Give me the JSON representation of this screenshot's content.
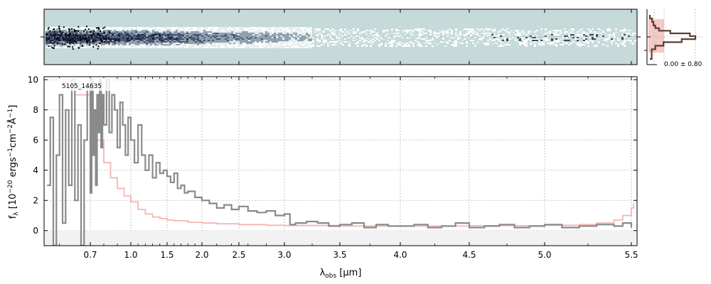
{
  "chart_data": [
    {
      "type": "heatmap",
      "panel": "2d-spectrum",
      "background_color": "#c5dad9",
      "trace_color": "#2b3550",
      "description_values": {
        "trace_center_row_fraction": 0.5
      }
    },
    {
      "type": "line",
      "panel": "cross-dispersion-profile",
      "annotation": "0.00 ± 0.80",
      "profile_color": "#5a3e32",
      "fill_color": "#f6c9c4",
      "profile": [
        [
          0.0,
          0.0
        ],
        [
          0.0,
          0.08
        ],
        [
          0.05,
          0.08
        ],
        [
          0.05,
          0.16
        ],
        [
          0.08,
          0.16
        ],
        [
          0.08,
          0.24
        ],
        [
          0.12,
          0.24
        ],
        [
          0.12,
          0.3
        ],
        [
          0.2,
          0.3
        ],
        [
          0.2,
          0.36
        ],
        [
          0.45,
          0.36
        ],
        [
          0.45,
          0.42
        ],
        [
          0.88,
          0.42
        ],
        [
          0.88,
          0.48
        ],
        [
          1.0,
          0.48
        ],
        [
          1.0,
          0.55
        ],
        [
          0.7,
          0.55
        ],
        [
          0.7,
          0.62
        ],
        [
          0.3,
          0.62
        ],
        [
          0.3,
          0.7
        ],
        [
          0.12,
          0.7
        ],
        [
          0.12,
          0.78
        ],
        [
          0.04,
          0.78
        ],
        [
          0.04,
          1.0
        ],
        [
          0.0,
          1.0
        ]
      ]
    },
    {
      "type": "line",
      "panel": "1d-spectrum",
      "xlabel": "λ_obs [μm]",
      "ylabel": "f_λ [10^-20 ergs^-1 cm^-2 Å^-1]",
      "xtick_labels": [
        "0.7",
        "1.0",
        "1.5",
        "2.0",
        "2.5",
        "3.0",
        "3.5",
        "4.0",
        "4.5",
        "5.0",
        "5.5"
      ],
      "xticks": [
        0.7,
        1.0,
        1.5,
        2.0,
        2.5,
        3.0,
        3.5,
        4.0,
        4.5,
        5.0,
        5.5
      ],
      "yticks": [
        0,
        2,
        4,
        6,
        8,
        10
      ],
      "ylim": [
        -1.0,
        10.2
      ],
      "grid": true,
      "legend_label": "5105_14635",
      "series": [
        {
          "role": "flux",
          "color": "#8a8a8a",
          "points": [
            [
              0.56,
              3.0
            ],
            [
              0.57,
              7.5
            ],
            [
              0.58,
              -1.0
            ],
            [
              0.59,
              5.0
            ],
            [
              0.6,
              9.0
            ],
            [
              0.61,
              0.5
            ],
            [
              0.62,
              8.0
            ],
            [
              0.63,
              3.0
            ],
            [
              0.64,
              10.0
            ],
            [
              0.65,
              2.0
            ],
            [
              0.66,
              7.0
            ],
            [
              0.67,
              -1.0
            ],
            [
              0.68,
              6.0
            ],
            [
              0.69,
              9.5
            ],
            [
              0.7,
              2.5
            ],
            [
              0.71,
              10.0
            ],
            [
              0.72,
              5.0
            ],
            [
              0.73,
              8.0
            ],
            [
              0.74,
              3.0
            ],
            [
              0.75,
              9.0
            ],
            [
              0.76,
              6.5
            ],
            [
              0.77,
              10.0
            ],
            [
              0.78,
              5.5
            ],
            [
              0.79,
              9.0
            ],
            [
              0.8,
              7.0
            ],
            [
              0.82,
              10.0
            ],
            [
              0.84,
              6.5
            ],
            [
              0.86,
              9.0
            ],
            [
              0.88,
              8.0
            ],
            [
              0.9,
              5.5
            ],
            [
              0.92,
              8.5
            ],
            [
              0.94,
              7.0
            ],
            [
              0.96,
              5.0
            ],
            [
              0.98,
              7.5
            ],
            [
              1.0,
              6.0
            ],
            [
              1.05,
              4.5
            ],
            [
              1.1,
              7.0
            ],
            [
              1.15,
              5.0
            ],
            [
              1.2,
              4.0
            ],
            [
              1.25,
              5.0
            ],
            [
              1.3,
              3.5
            ],
            [
              1.35,
              4.5
            ],
            [
              1.4,
              3.8
            ],
            [
              1.45,
              4.0
            ],
            [
              1.5,
              3.6
            ],
            [
              1.55,
              3.2
            ],
            [
              1.6,
              3.8
            ],
            [
              1.65,
              2.8
            ],
            [
              1.7,
              3.0
            ],
            [
              1.75,
              2.5
            ],
            [
              1.8,
              2.6
            ],
            [
              1.9,
              2.2
            ],
            [
              2.0,
              2.0
            ],
            [
              2.1,
              1.8
            ],
            [
              2.2,
              1.5
            ],
            [
              2.3,
              1.7
            ],
            [
              2.4,
              1.4
            ],
            [
              2.5,
              1.6
            ],
            [
              2.6,
              1.3
            ],
            [
              2.7,
              1.2
            ],
            [
              2.8,
              1.3
            ],
            [
              2.9,
              1.0
            ],
            [
              3.0,
              1.1
            ],
            [
              3.05,
              0.4
            ],
            [
              3.1,
              0.5
            ],
            [
              3.2,
              0.6
            ],
            [
              3.3,
              0.5
            ],
            [
              3.4,
              0.3
            ],
            [
              3.5,
              0.4
            ],
            [
              3.6,
              0.5
            ],
            [
              3.7,
              0.2
            ],
            [
              3.8,
              0.4
            ],
            [
              3.9,
              0.3
            ],
            [
              4.0,
              0.3
            ],
            [
              4.1,
              0.4
            ],
            [
              4.2,
              0.2
            ],
            [
              4.3,
              0.3
            ],
            [
              4.4,
              0.5
            ],
            [
              4.5,
              0.2
            ],
            [
              4.6,
              0.3
            ],
            [
              4.7,
              0.4
            ],
            [
              4.8,
              0.2
            ],
            [
              4.9,
              0.3
            ],
            [
              5.0,
              0.4
            ],
            [
              5.1,
              0.2
            ],
            [
              5.2,
              0.3
            ],
            [
              5.3,
              0.4
            ],
            [
              5.4,
              0.3
            ],
            [
              5.45,
              0.5
            ],
            [
              5.5,
              0.2
            ]
          ]
        },
        {
          "role": "error",
          "color": "#f4b5b2",
          "points": [
            [
              0.6,
              10.0
            ],
            [
              0.65,
              9.0
            ],
            [
              0.7,
              7.5
            ],
            [
              0.75,
              6.0
            ],
            [
              0.8,
              4.5
            ],
            [
              0.85,
              3.5
            ],
            [
              0.9,
              2.8
            ],
            [
              0.95,
              2.3
            ],
            [
              1.0,
              1.9
            ],
            [
              1.1,
              1.4
            ],
            [
              1.2,
              1.1
            ],
            [
              1.3,
              0.9
            ],
            [
              1.4,
              0.8
            ],
            [
              1.5,
              0.7
            ],
            [
              1.6,
              0.65
            ],
            [
              1.8,
              0.55
            ],
            [
              2.0,
              0.5
            ],
            [
              2.2,
              0.45
            ],
            [
              2.5,
              0.4
            ],
            [
              2.8,
              0.35
            ],
            [
              3.0,
              0.33
            ],
            [
              3.5,
              0.3
            ],
            [
              4.0,
              0.3
            ],
            [
              4.5,
              0.32
            ],
            [
              5.0,
              0.35
            ],
            [
              5.2,
              0.4
            ],
            [
              5.3,
              0.5
            ],
            [
              5.4,
              0.7
            ],
            [
              5.45,
              1.0
            ],
            [
              5.5,
              1.5
            ],
            [
              5.52,
              1.8
            ]
          ]
        }
      ]
    }
  ]
}
